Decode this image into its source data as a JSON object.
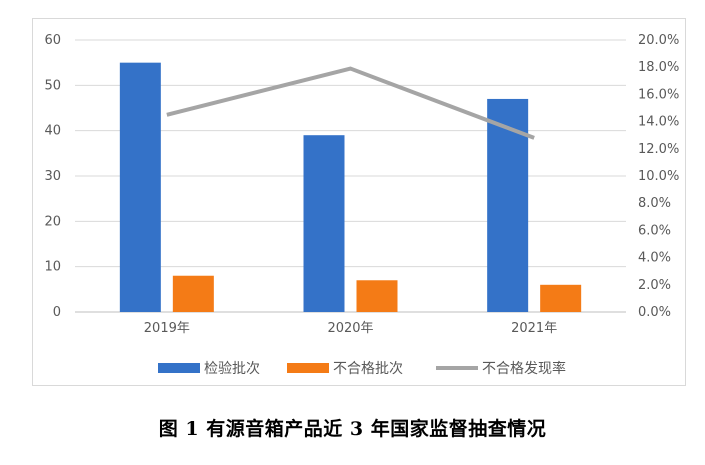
{
  "chart_data": {
    "type": "bar",
    "title": "",
    "categories": [
      "2019年",
      "2020年",
      "2021年"
    ],
    "series": [
      {
        "name": "检验批次",
        "kind": "bar",
        "axis": "left",
        "color": "#3472c8",
        "values": [
          55,
          39,
          47
        ]
      },
      {
        "name": "不合格批次",
        "kind": "bar",
        "axis": "left",
        "color": "#f47b16",
        "values": [
          8,
          7,
          6
        ]
      },
      {
        "name": "不合格发现率",
        "kind": "line",
        "axis": "right",
        "color": "#a5a5a5",
        "values": [
          14.5,
          17.9,
          12.8
        ]
      }
    ],
    "y_left": {
      "min": 0,
      "max": 60,
      "ticks": [
        "0",
        "10",
        "20",
        "30",
        "40",
        "50",
        "60"
      ]
    },
    "y_right": {
      "min": 0,
      "max": 20,
      "ticks": [
        "0.0%",
        "2.0%",
        "4.0%",
        "6.0%",
        "8.0%",
        "10.0%",
        "12.0%",
        "14.0%",
        "16.0%",
        "18.0%",
        "20.0%"
      ]
    },
    "grid": true,
    "legend_position": "bottom"
  },
  "caption": "图 1 有源音箱产品近 3 年国家监督抽查情况"
}
